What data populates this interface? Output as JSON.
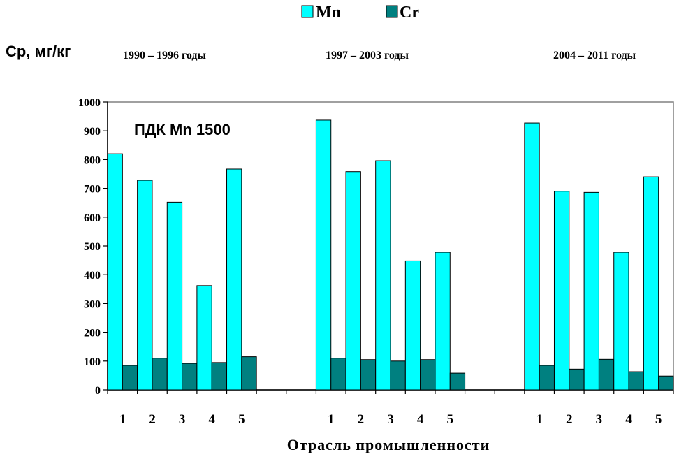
{
  "chart_data": {
    "type": "bar",
    "ylabel": "Ср, мг/кг",
    "xlabel": "Отрасль промышленности",
    "annotation": "ПДК Mn 1500",
    "ylim": [
      0,
      1000
    ],
    "yticks": [
      "0",
      "100",
      "200",
      "300",
      "400",
      "500",
      "600",
      "700",
      "800",
      "900",
      "1000"
    ],
    "grid": false,
    "legend_position": "top-center",
    "series": [
      {
        "name": "Mn",
        "color": "#00FFFF"
      },
      {
        "name": "Cr",
        "color": "#008080"
      }
    ],
    "groups": [
      {
        "label": "1990 – 1996  годы",
        "categories": [
          "1",
          "2",
          "3",
          "4",
          "5"
        ],
        "Mn": [
          820,
          728,
          652,
          362,
          767
        ],
        "Cr": [
          85,
          110,
          92,
          95,
          115
        ]
      },
      {
        "label": "1997 – 2003  годы",
        "categories": [
          "1",
          "2",
          "3",
          "4",
          "5"
        ],
        "Mn": [
          937,
          758,
          796,
          448,
          478
        ],
        "Cr": [
          110,
          105,
          100,
          105,
          58
        ]
      },
      {
        "label": "2004 – 2011  годы",
        "categories": [
          "1",
          "2",
          "3",
          "4",
          "5"
        ],
        "Mn": [
          927,
          690,
          686,
          478,
          740
        ],
        "Cr": [
          85,
          72,
          106,
          63,
          48
        ]
      }
    ]
  }
}
